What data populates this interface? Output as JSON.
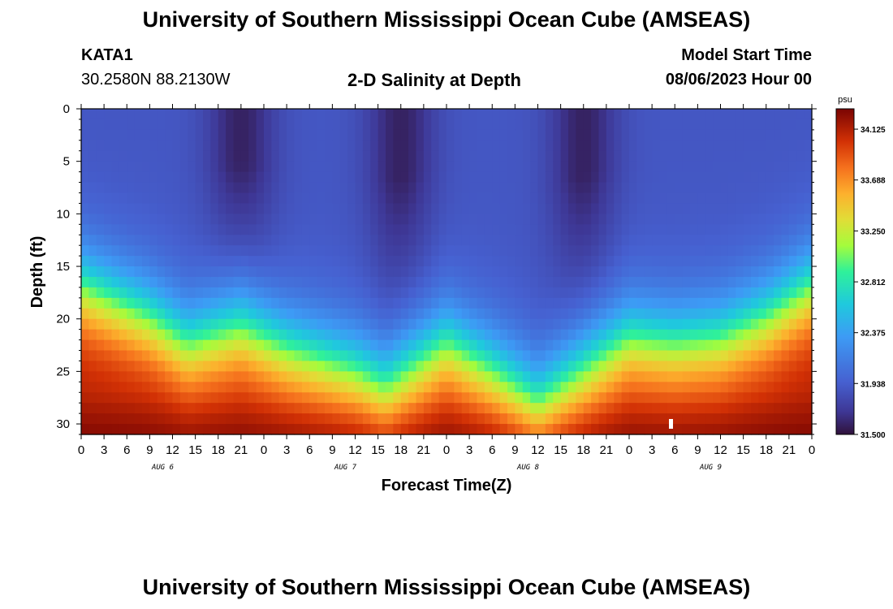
{
  "page": {
    "title_top": "University of Southern Mississippi Ocean Cube (AMSEAS)",
    "title_bottom": "University of Southern Mississippi Ocean Cube (AMSEAS)",
    "station_id": "KATA1",
    "station_coords": "30.2580N  88.2130W",
    "plot_title": "2-D Salinity at Depth",
    "model_start_label": "Model Start Time",
    "model_start_value": "08/06/2023 Hour 00"
  },
  "chart_data": {
    "type": "heatmap",
    "title": "2-D Salinity at Depth",
    "xlabel": "Forecast Time(Z)",
    "ylabel": "Depth (ft)",
    "x_range_hours": [
      0,
      96
    ],
    "y_range_ft": [
      0,
      31
    ],
    "x_tick_labels": [
      "0",
      "3",
      "6",
      "9",
      "12",
      "15",
      "18",
      "21",
      "0",
      "3",
      "6",
      "9",
      "12",
      "15",
      "18",
      "21",
      "0",
      "3",
      "6",
      "9",
      "12",
      "15",
      "18",
      "21",
      "0",
      "3",
      "6",
      "9",
      "12",
      "15",
      "18",
      "21",
      "0"
    ],
    "y_ticks": [
      0,
      5,
      10,
      15,
      20,
      25,
      30
    ],
    "day_labels": [
      "AUG 6",
      "AUG 7",
      "AUG 8",
      "AUG 9"
    ],
    "colorbar": {
      "unit": "psu",
      "min": 31.5,
      "max": 34.3,
      "tick_labels": [
        "34.125",
        "33.688",
        "33.250",
        "32.812",
        "32.375",
        "31.938",
        "31.500"
      ],
      "tick_values": [
        34.125,
        33.688,
        33.25,
        32.812,
        32.375,
        31.938,
        31.5
      ]
    },
    "halocline_depth_ft_by_hour": [
      {
        "hour": 0,
        "depth": 17
      },
      {
        "hour": 9,
        "depth": 20
      },
      {
        "hour": 14,
        "depth": 22.5
      },
      {
        "hour": 21,
        "depth": 21
      },
      {
        "hour": 27,
        "depth": 23
      },
      {
        "hour": 36,
        "depth": 25
      },
      {
        "hour": 40,
        "depth": 26.5
      },
      {
        "hour": 45,
        "depth": 24
      },
      {
        "hour": 48,
        "depth": 22.5
      },
      {
        "hour": 54,
        "depth": 25
      },
      {
        "hour": 60,
        "depth": 28
      },
      {
        "hour": 66,
        "depth": 25
      },
      {
        "hour": 72,
        "depth": 22
      },
      {
        "hour": 78,
        "depth": 22.5
      },
      {
        "hour": 84,
        "depth": 22
      },
      {
        "hour": 90,
        "depth": 20
      },
      {
        "hour": 96,
        "depth": 17
      }
    ],
    "fresh_surface_cores_hours": [
      21,
      42,
      66
    ],
    "bottom_salinity_max_psu": 34.3,
    "surface_salinity_min_psu": 31.5
  },
  "colors": {
    "background": "#ffffff",
    "axis": "#000000",
    "marker": "#ffffff"
  }
}
